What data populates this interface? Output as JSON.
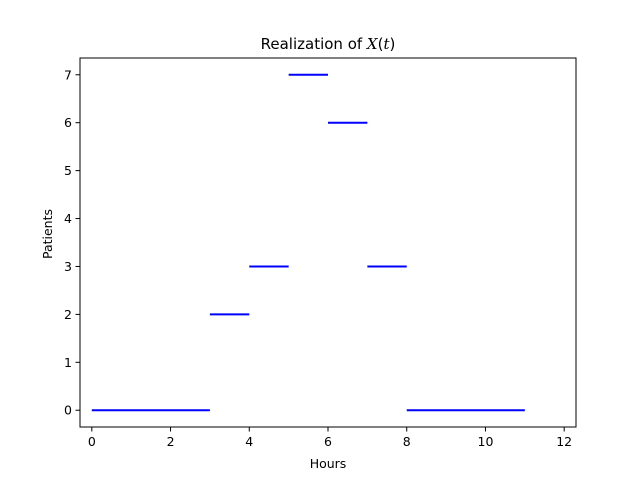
{
  "chart_data": {
    "type": "line",
    "title": {
      "text": "Realization of ",
      "var": "X",
      "open": "(",
      "arg": "t",
      "close": ")"
    },
    "xlabel": "Hours",
    "ylabel": "Patients",
    "xlim": [
      -0.3,
      12.3
    ],
    "ylim": [
      -0.35,
      7.35
    ],
    "xticks": [
      0,
      2,
      4,
      6,
      8,
      10,
      12
    ],
    "yticks": [
      0,
      1,
      2,
      3,
      4,
      5,
      6,
      7
    ],
    "grid": false,
    "series": [
      {
        "color": "#0000ff",
        "style": "horizontal-steps",
        "segments": [
          {
            "x_start": 0,
            "x_end": 3,
            "y": 0
          },
          {
            "x_start": 3,
            "x_end": 4,
            "y": 2
          },
          {
            "x_start": 4,
            "x_end": 5,
            "y": 3
          },
          {
            "x_start": 5,
            "x_end": 6,
            "y": 7
          },
          {
            "x_start": 6,
            "x_end": 7,
            "y": 6
          },
          {
            "x_start": 7,
            "x_end": 8,
            "y": 3
          },
          {
            "x_start": 8,
            "x_end": 11,
            "y": 0
          }
        ]
      }
    ]
  }
}
